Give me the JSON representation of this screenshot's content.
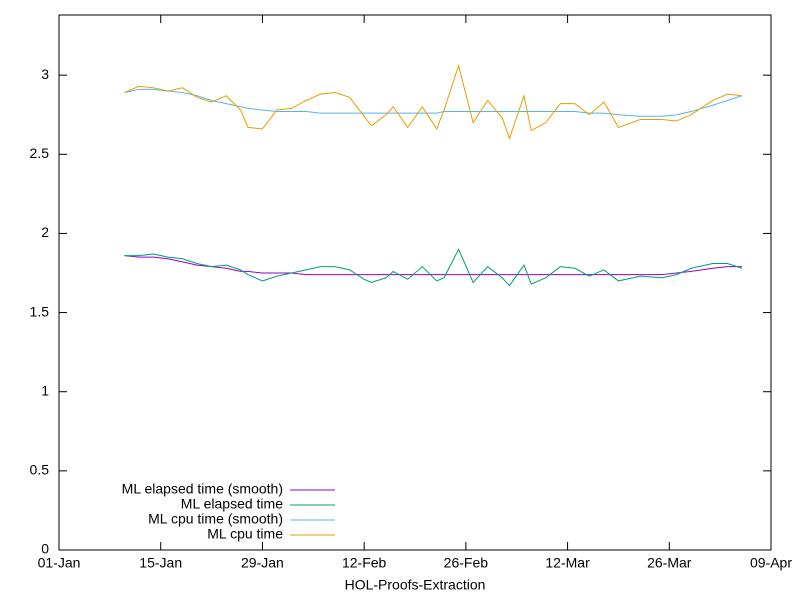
{
  "chart_data": {
    "type": "line",
    "xlabel": "HOL-Proofs-Extraction",
    "x": [
      9,
      11,
      13,
      15,
      17,
      19,
      21,
      23,
      25,
      26,
      28,
      30,
      32,
      34,
      36,
      38,
      40,
      42,
      43,
      45,
      46,
      48,
      50,
      52,
      53,
      55,
      57,
      59,
      61,
      62,
      64,
      65,
      67,
      69,
      71,
      73,
      75,
      77,
      80,
      83,
      85,
      87,
      90,
      92,
      94
    ],
    "xlim": [
      0,
      98
    ],
    "xticks": [
      {
        "value": 0,
        "label": "01-Jan"
      },
      {
        "value": 14,
        "label": "15-Jan"
      },
      {
        "value": 28,
        "label": "29-Jan"
      },
      {
        "value": 42,
        "label": "12-Feb"
      },
      {
        "value": 56,
        "label": "26-Feb"
      },
      {
        "value": 70,
        "label": "12-Mar"
      },
      {
        "value": 84,
        "label": "26-Mar"
      },
      {
        "value": 98,
        "label": "09-Apr"
      }
    ],
    "ylim": [
      0,
      3.38
    ],
    "yticks": [
      0,
      0.5,
      1,
      1.5,
      2,
      2.5,
      3
    ],
    "grid": false,
    "legend": "bottom-left",
    "series": [
      {
        "name": "ML elapsed time (smooth)",
        "color": "#9400d3",
        "values": [
          1.86,
          1.85,
          1.85,
          1.84,
          1.82,
          1.8,
          1.79,
          1.78,
          1.76,
          1.76,
          1.75,
          1.75,
          1.75,
          1.74,
          1.74,
          1.74,
          1.74,
          1.74,
          1.74,
          1.74,
          1.74,
          1.74,
          1.74,
          1.74,
          1.74,
          1.74,
          1.74,
          1.74,
          1.74,
          1.74,
          1.74,
          1.74,
          1.74,
          1.74,
          1.74,
          1.74,
          1.74,
          1.74,
          1.74,
          1.74,
          1.75,
          1.76,
          1.78,
          1.79,
          1.79
        ]
      },
      {
        "name": "ML elapsed time",
        "color": "#009e73",
        "values": [
          1.86,
          1.86,
          1.87,
          1.85,
          1.84,
          1.81,
          1.79,
          1.8,
          1.77,
          1.74,
          1.7,
          1.73,
          1.75,
          1.77,
          1.79,
          1.79,
          1.77,
          1.71,
          1.69,
          1.72,
          1.76,
          1.71,
          1.79,
          1.7,
          1.72,
          1.9,
          1.69,
          1.79,
          1.72,
          1.67,
          1.8,
          1.68,
          1.72,
          1.79,
          1.78,
          1.73,
          1.77,
          1.7,
          1.73,
          1.72,
          1.74,
          1.78,
          1.81,
          1.81,
          1.78
        ]
      },
      {
        "name": "ML cpu time (smooth)",
        "color": "#56b4e9",
        "values": [
          2.89,
          2.91,
          2.91,
          2.9,
          2.89,
          2.87,
          2.84,
          2.82,
          2.8,
          2.79,
          2.78,
          2.77,
          2.77,
          2.77,
          2.76,
          2.76,
          2.76,
          2.76,
          2.76,
          2.76,
          2.76,
          2.76,
          2.76,
          2.76,
          2.77,
          2.77,
          2.77,
          2.77,
          2.77,
          2.77,
          2.77,
          2.77,
          2.77,
          2.77,
          2.77,
          2.76,
          2.76,
          2.75,
          2.74,
          2.74,
          2.75,
          2.77,
          2.81,
          2.84,
          2.87
        ]
      },
      {
        "name": "ML cpu time",
        "color": "#e69f00",
        "values": [
          2.89,
          2.93,
          2.92,
          2.9,
          2.92,
          2.86,
          2.83,
          2.87,
          2.78,
          2.67,
          2.66,
          2.78,
          2.79,
          2.84,
          2.88,
          2.89,
          2.86,
          2.74,
          2.68,
          2.75,
          2.8,
          2.67,
          2.8,
          2.66,
          2.78,
          3.06,
          2.7,
          2.84,
          2.73,
          2.6,
          2.87,
          2.65,
          2.7,
          2.82,
          2.82,
          2.75,
          2.83,
          2.67,
          2.72,
          2.72,
          2.71,
          2.75,
          2.84,
          2.88,
          2.87
        ]
      }
    ]
  }
}
